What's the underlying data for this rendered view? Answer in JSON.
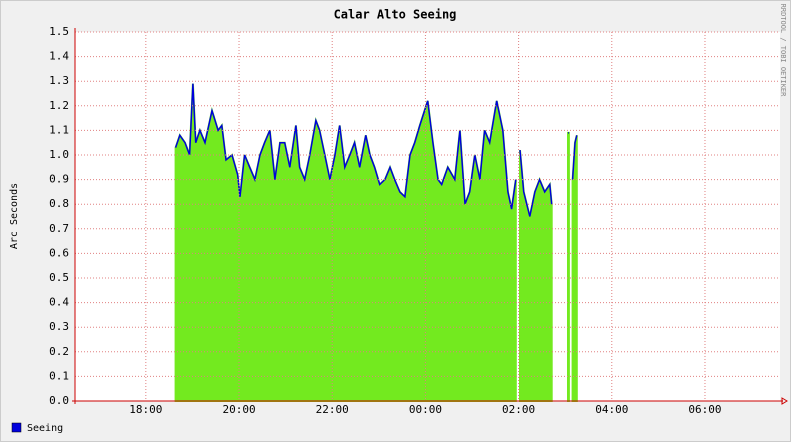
{
  "chart_data": {
    "type": "area",
    "title": "Calar Alto Seeing",
    "y_label": "Arc Seconds",
    "side_note": "RRDTOOL / TOBI OETIKER",
    "grid": true,
    "legend_position": "bottom-left",
    "xlim": [
      16.48,
      31.61
    ],
    "xticks": [
      {
        "value": 18,
        "label": "18:00"
      },
      {
        "value": 20,
        "label": "20:00"
      },
      {
        "value": 22,
        "label": "22:00"
      },
      {
        "value": 24,
        "label": "00:00"
      },
      {
        "value": 26,
        "label": "02:00"
      },
      {
        "value": 28,
        "label": "04:00"
      },
      {
        "value": 30,
        "label": "06:00"
      }
    ],
    "ylim": [
      0,
      1.5
    ],
    "yticks": [
      {
        "value": 0,
        "label": "0.0"
      },
      0.1,
      0.2,
      0.3,
      0.4,
      0.5,
      0.6,
      0.7,
      0.8,
      0.9,
      {
        "value": 1,
        "label": "1.0"
      },
      1.1,
      1.2,
      1.3,
      1.4,
      1.5
    ],
    "x": [
      18.64,
      18.73,
      18.84,
      18.94,
      19.01,
      19.07,
      19.16,
      19.27,
      19.42,
      19.55,
      19.63,
      19.72,
      19.85,
      19.97,
      20.02,
      20.12,
      20.23,
      20.34,
      20.45,
      20.55,
      20.66,
      20.77,
      20.88,
      20.98,
      21.09,
      21.22,
      21.3,
      21.41,
      21.52,
      21.65,
      21.73,
      21.84,
      21.95,
      22.06,
      22.16,
      22.27,
      22.38,
      22.48,
      22.59,
      22.72,
      22.81,
      22.91,
      23.02,
      23.13,
      23.24,
      23.34,
      23.45,
      23.56,
      23.67,
      23.77,
      23.88,
      24.05,
      24.16,
      24.27,
      24.35,
      24.48,
      24.63,
      24.74,
      24.85,
      24.95,
      25.06,
      25.17,
      25.27,
      25.38,
      25.53,
      25.66,
      25.77,
      25.85,
      25.94,
      25.98,
      26.03,
      26.11,
      26.24,
      26.35,
      26.45,
      26.56,
      26.67,
      26.71,
      26.9,
      27.06,
      27.08,
      27.15,
      27.16,
      27.21,
      27.25
    ],
    "series": [
      {
        "name": "Seeing",
        "color": "#0000dd",
        "area_color": "#73ea1f",
        "values": [
          1.03,
          1.08,
          1.05,
          1.0,
          1.29,
          1.05,
          1.1,
          1.05,
          1.18,
          1.1,
          1.12,
          0.98,
          1.0,
          0.92,
          0.83,
          1.0,
          0.95,
          0.9,
          1.0,
          1.05,
          1.1,
          0.9,
          1.05,
          1.05,
          0.95,
          1.12,
          0.95,
          0.9,
          1.0,
          1.14,
          1.1,
          1.0,
          0.9,
          1.0,
          1.12,
          0.95,
          1.0,
          1.05,
          0.95,
          1.08,
          1.0,
          0.95,
          0.88,
          0.9,
          0.95,
          0.9,
          0.85,
          0.83,
          1.0,
          1.05,
          1.12,
          1.22,
          1.05,
          0.9,
          0.88,
          0.95,
          0.9,
          1.1,
          0.8,
          0.85,
          1.0,
          0.9,
          1.1,
          1.05,
          1.22,
          1.1,
          0.85,
          0.78,
          0.9,
          null,
          1.02,
          0.85,
          0.75,
          0.85,
          0.9,
          0.85,
          0.88,
          0.8,
          null,
          1.09,
          1.09,
          null,
          0.9,
          1.05,
          1.08
        ]
      }
    ]
  }
}
